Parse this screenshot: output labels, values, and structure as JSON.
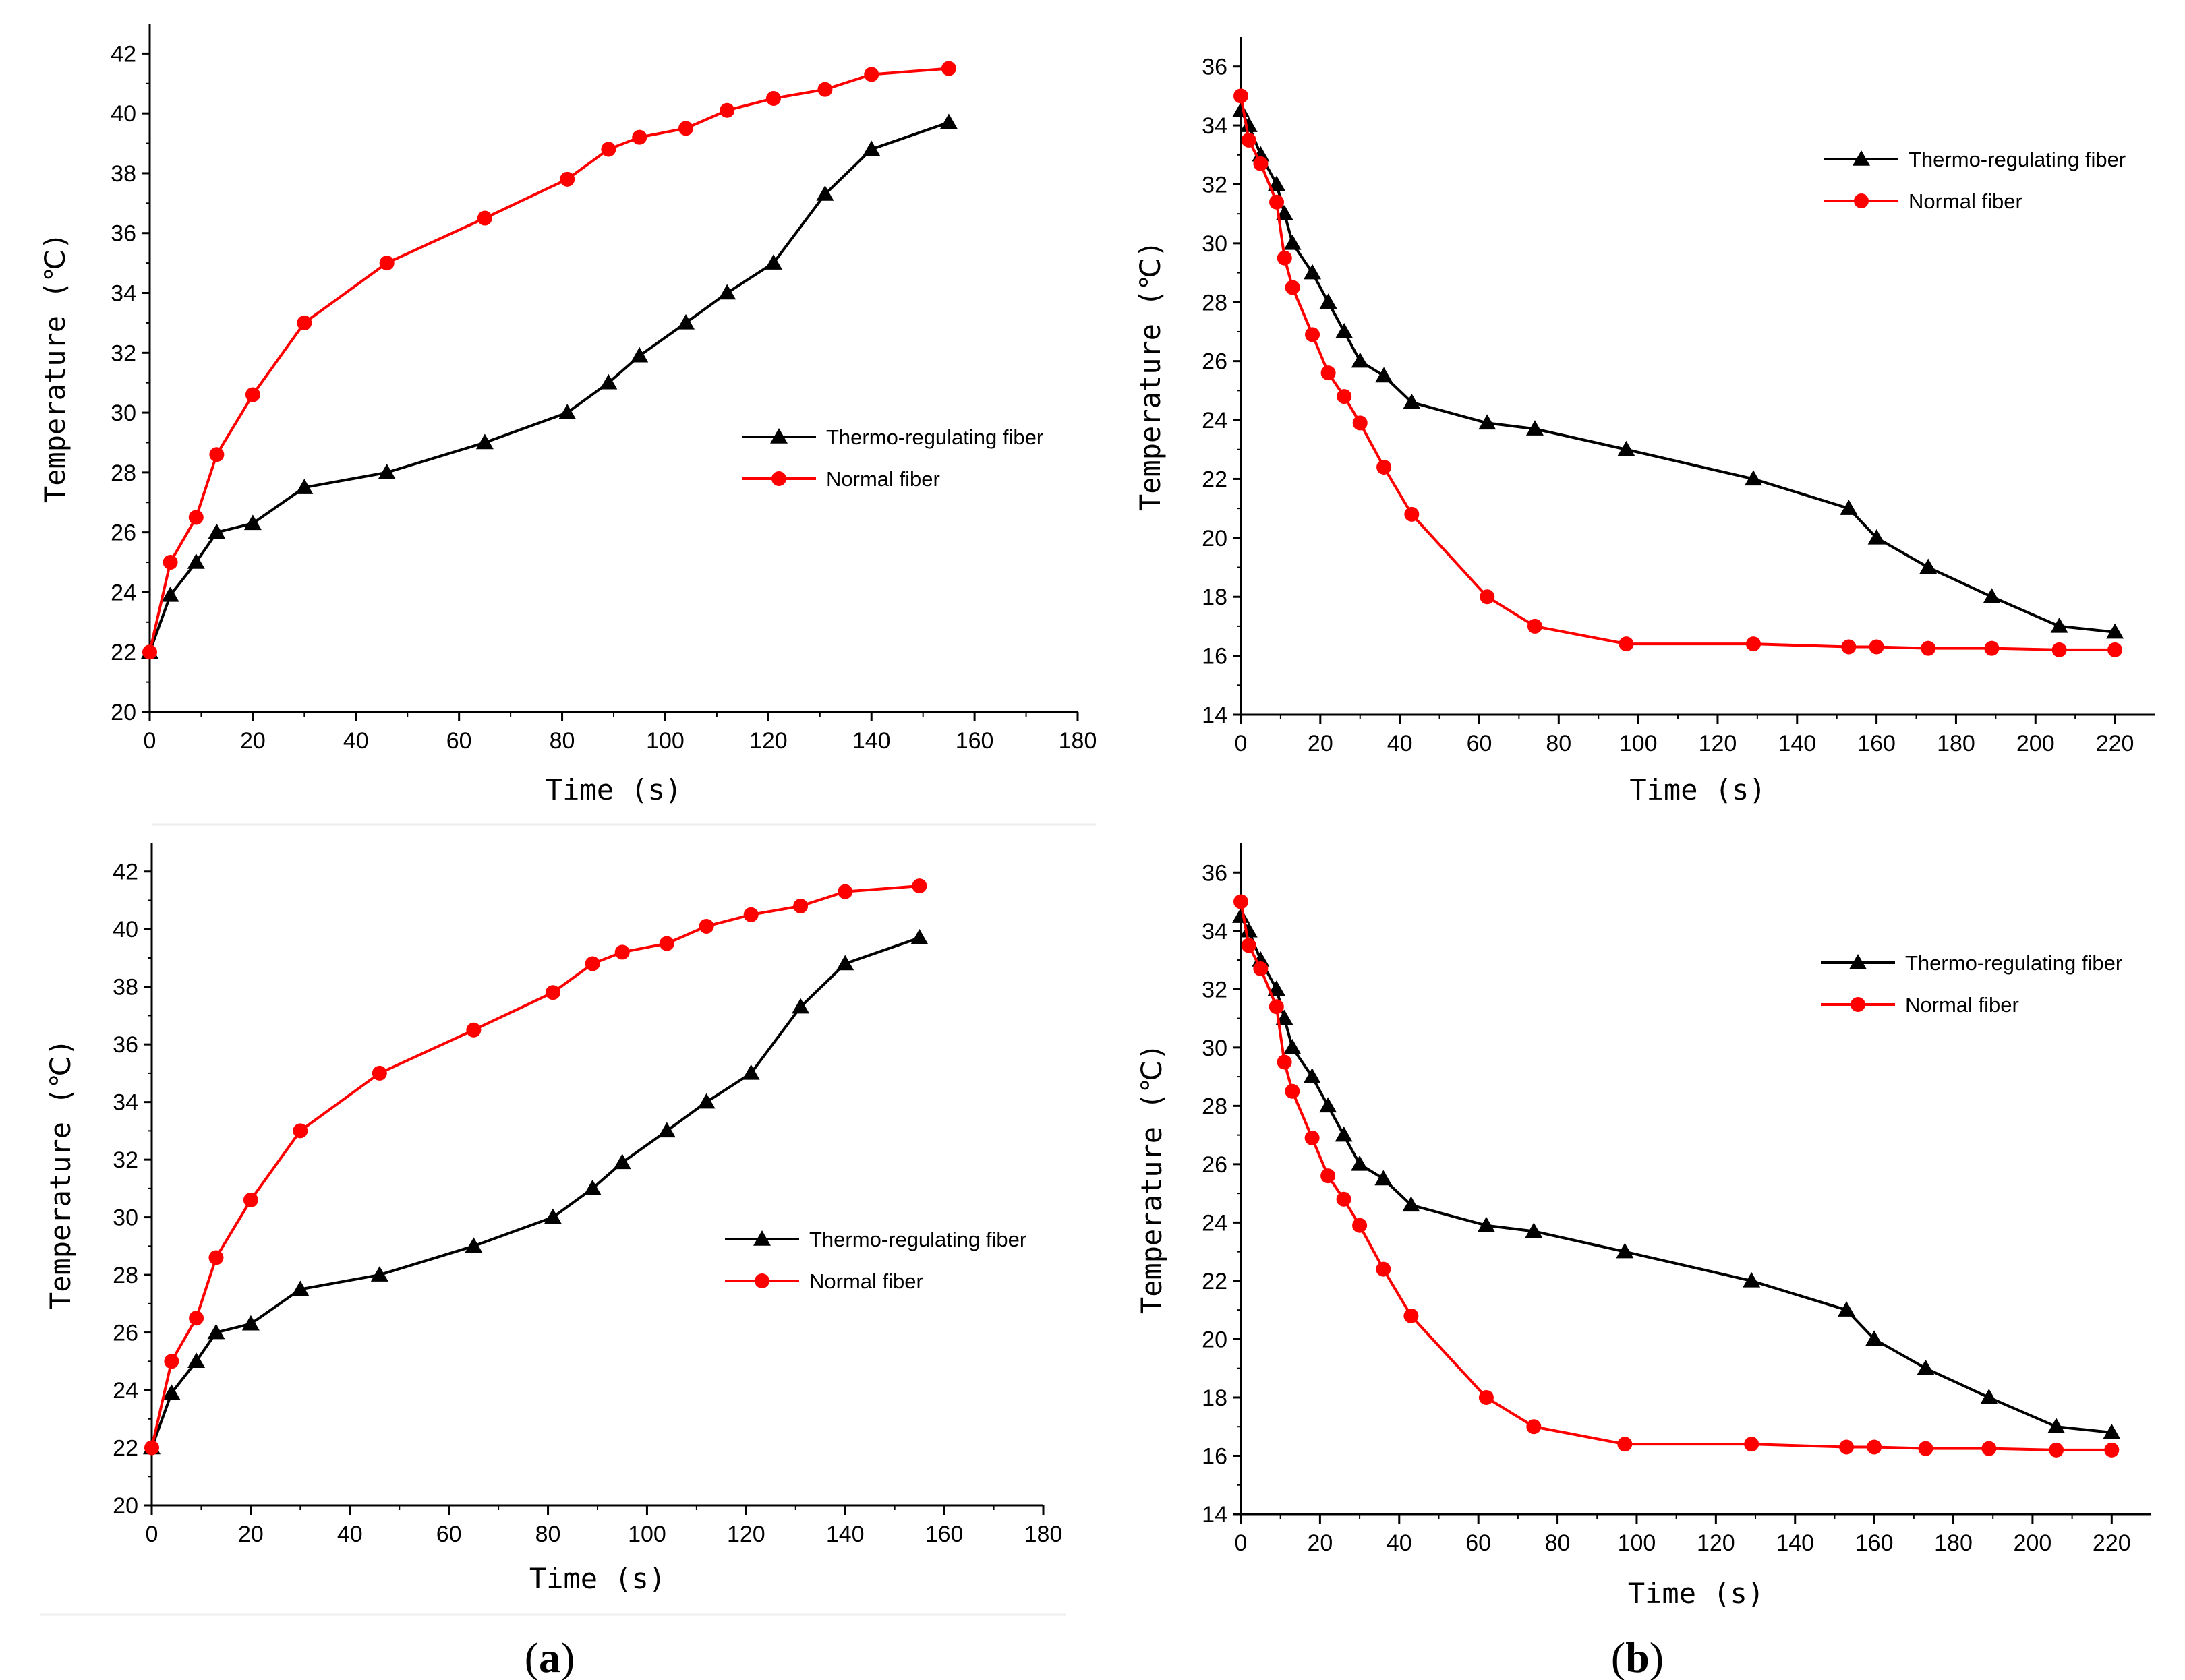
{
  "figure": {
    "caption_a_open": "(",
    "caption_a_letter": "a",
    "caption_a_close": ")",
    "caption_b_open": "(",
    "caption_b_letter": "b",
    "caption_b_close": ")"
  },
  "chart_data": [
    {
      "id": "top-left",
      "type": "line",
      "xlabel": "Time (s)",
      "ylabel": "Temperature (℃)",
      "xlim": [
        0,
        180
      ],
      "ylim": [
        20,
        43
      ],
      "xticks": [
        0,
        20,
        40,
        60,
        80,
        100,
        120,
        140,
        160,
        180
      ],
      "yticks": [
        20,
        22,
        24,
        26,
        28,
        30,
        32,
        34,
        36,
        38,
        40,
        42
      ],
      "legend": "center-right",
      "series": [
        {
          "name": "Thermo-regulating fiber",
          "color": "#000000",
          "marker": "triangle",
          "x": [
            0,
            4,
            9,
            13,
            20,
            30,
            46,
            65,
            81,
            89,
            95,
            104,
            112,
            121,
            131,
            140,
            155
          ],
          "y": [
            22,
            23.9,
            25,
            26,
            26.3,
            27.5,
            28,
            29,
            30,
            31,
            31.9,
            33,
            34,
            35,
            37.3,
            38.8,
            39.7
          ]
        },
        {
          "name": "Normal fiber",
          "color": "#ff0000",
          "marker": "circle",
          "x": [
            0,
            4,
            9,
            13,
            20,
            30,
            46,
            65,
            81,
            89,
            95,
            104,
            112,
            121,
            131,
            140,
            155
          ],
          "y": [
            22,
            25,
            26.5,
            28.6,
            30.6,
            33,
            35,
            36.5,
            37.8,
            38.8,
            39.2,
            39.5,
            40.1,
            40.5,
            40.8,
            41.3,
            41.5
          ]
        }
      ]
    },
    {
      "id": "top-right",
      "type": "line",
      "xlabel": "Time (s)",
      "ylabel": "Temperature (℃)",
      "xlim": [
        0,
        230
      ],
      "ylim": [
        14,
        37
      ],
      "xticks": [
        0,
        20,
        40,
        60,
        80,
        100,
        120,
        140,
        160,
        180,
        200,
        220
      ],
      "yticks": [
        14,
        16,
        18,
        20,
        22,
        24,
        26,
        28,
        30,
        32,
        34,
        36
      ],
      "legend": "top-right",
      "series": [
        {
          "name": "Thermo-regulating fiber",
          "color": "#000000",
          "marker": "triangle",
          "x": [
            0,
            2,
            5,
            9,
            11,
            13,
            18,
            22,
            26,
            30,
            36,
            43,
            62,
            74,
            97,
            129,
            153,
            160,
            173,
            189,
            206,
            220
          ],
          "y": [
            34.5,
            34,
            33,
            32,
            31,
            30,
            29,
            28,
            27,
            26,
            25.5,
            24.6,
            23.9,
            23.7,
            23,
            22,
            21,
            20,
            19,
            18,
            17,
            16.8
          ]
        },
        {
          "name": "Normal fiber",
          "color": "#ff0000",
          "marker": "circle",
          "x": [
            0,
            2,
            5,
            9,
            11,
            13,
            18,
            22,
            26,
            30,
            36,
            43,
            62,
            74,
            97,
            129,
            153,
            160,
            173,
            189,
            206,
            220
          ],
          "y": [
            35,
            33.5,
            32.7,
            31.4,
            29.5,
            28.5,
            26.9,
            25.6,
            24.8,
            23.9,
            22.4,
            20.8,
            18,
            17,
            16.4,
            16.4,
            16.3,
            16.3,
            16.25,
            16.25,
            16.2,
            16.2
          ]
        }
      ]
    },
    {
      "id": "bottom-left",
      "type": "line",
      "xlabel": "Time (s)",
      "ylabel": "Temperature (℃)",
      "xlim": [
        0,
        180
      ],
      "ylim": [
        20,
        43
      ],
      "xticks": [
        0,
        20,
        40,
        60,
        80,
        100,
        120,
        140,
        160,
        180
      ],
      "yticks": [
        20,
        22,
        24,
        26,
        28,
        30,
        32,
        34,
        36,
        38,
        40,
        42
      ],
      "legend": "center-right",
      "series": [
        {
          "name": "Thermo-regulating fiber",
          "color": "#000000",
          "marker": "triangle",
          "x": [
            0,
            4,
            9,
            13,
            20,
            30,
            46,
            65,
            81,
            89,
            95,
            104,
            112,
            121,
            131,
            140,
            155
          ],
          "y": [
            22,
            23.9,
            25,
            26,
            26.3,
            27.5,
            28,
            29,
            30,
            31,
            31.9,
            33,
            34,
            35,
            37.3,
            38.8,
            39.7
          ]
        },
        {
          "name": "Normal fiber",
          "color": "#ff0000",
          "marker": "circle",
          "x": [
            0,
            4,
            9,
            13,
            20,
            30,
            46,
            65,
            81,
            89,
            95,
            104,
            112,
            121,
            131,
            140,
            155
          ],
          "y": [
            22,
            25,
            26.5,
            28.6,
            30.6,
            33,
            35,
            36.5,
            37.8,
            38.8,
            39.2,
            39.5,
            40.1,
            40.5,
            40.8,
            41.3,
            41.5
          ]
        }
      ]
    },
    {
      "id": "bottom-right",
      "type": "line",
      "xlabel": "Time (s)",
      "ylabel": "Temperature (℃)",
      "xlim": [
        0,
        230
      ],
      "ylim": [
        14,
        37
      ],
      "xticks": [
        0,
        20,
        40,
        60,
        80,
        100,
        120,
        140,
        160,
        180,
        200,
        220
      ],
      "yticks": [
        14,
        16,
        18,
        20,
        22,
        24,
        26,
        28,
        30,
        32,
        34,
        36
      ],
      "legend": "top-right",
      "series": [
        {
          "name": "Thermo-regulating fiber",
          "color": "#000000",
          "marker": "triangle",
          "x": [
            0,
            2,
            5,
            9,
            11,
            13,
            18,
            22,
            26,
            30,
            36,
            43,
            62,
            74,
            97,
            129,
            153,
            160,
            173,
            189,
            206,
            220
          ],
          "y": [
            34.5,
            34,
            33,
            32,
            31,
            30,
            29,
            28,
            27,
            26,
            25.5,
            24.6,
            23.9,
            23.7,
            23,
            22,
            21,
            20,
            19,
            18,
            17,
            16.8
          ]
        },
        {
          "name": "Normal fiber",
          "color": "#ff0000",
          "marker": "circle",
          "x": [
            0,
            2,
            5,
            9,
            11,
            13,
            18,
            22,
            26,
            30,
            36,
            43,
            62,
            74,
            97,
            129,
            153,
            160,
            173,
            189,
            206,
            220
          ],
          "y": [
            35,
            33.5,
            32.7,
            31.4,
            29.5,
            28.5,
            26.9,
            25.6,
            24.8,
            23.9,
            22.4,
            20.8,
            18,
            17,
            16.4,
            16.4,
            16.3,
            16.3,
            16.25,
            16.25,
            16.2,
            16.2
          ]
        }
      ]
    }
  ]
}
